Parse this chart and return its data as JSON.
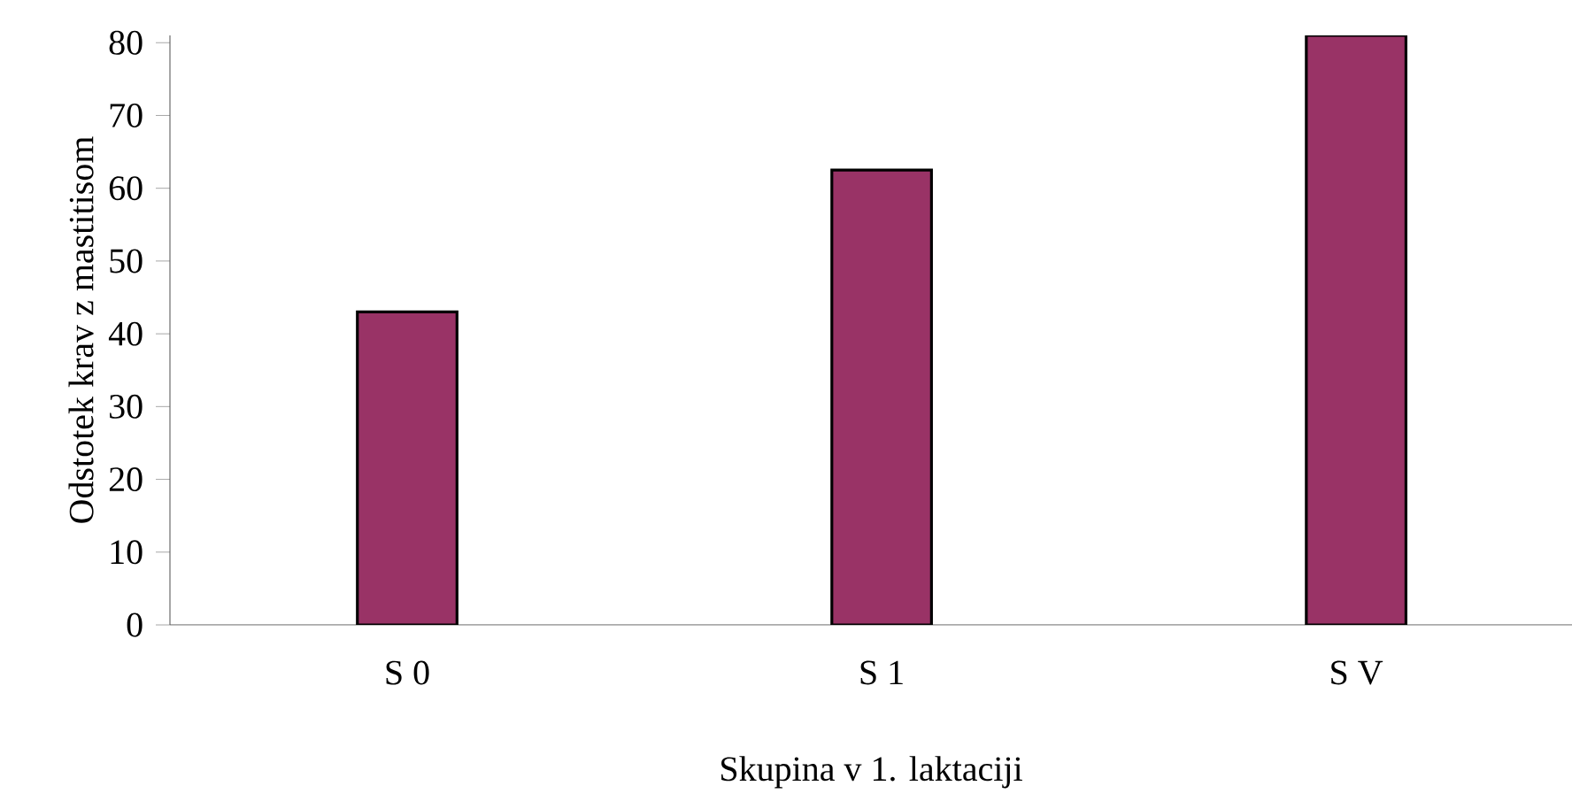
{
  "chart_data": {
    "type": "bar",
    "xlabel": "Skupina v  1. laktaciji",
    "ylabel": "Odstotek krav z mastitisom",
    "categories": [
      "S 0",
      "S 1",
      "S V"
    ],
    "values": [
      43,
      62.5,
      81
    ],
    "color": "#993366",
    "ylim": [
      0,
      81
    ],
    "yticks": [
      0,
      10,
      20,
      30,
      40,
      50,
      60,
      70,
      80
    ]
  }
}
